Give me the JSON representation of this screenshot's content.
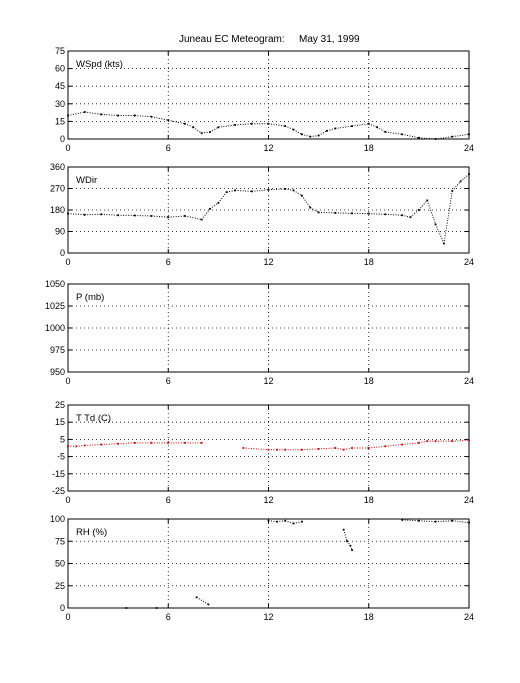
{
  "title": {
    "station": "Juneau EC Meteogram:",
    "date": "May 31, 1999"
  },
  "chart_data": [
    {
      "type": "scatter",
      "label": "WSpd (kts)",
      "xlim": [
        0,
        24
      ],
      "ylim": [
        0,
        75
      ],
      "xticks": [
        "0",
        "6",
        "12",
        "18",
        "24"
      ],
      "yticks": [
        "0",
        "15",
        "30",
        "45",
        "60",
        "75"
      ],
      "grid": true,
      "series": [
        {
          "color": "#000000",
          "x": [
            0,
            1,
            2,
            3,
            4,
            5,
            6,
            7,
            7.5,
            8,
            8.5,
            9,
            10,
            11,
            12,
            13,
            13.5,
            14,
            14.5,
            15,
            15.5,
            16,
            17,
            18,
            18.5,
            19,
            20,
            21,
            22,
            23,
            24
          ],
          "y": [
            20,
            23,
            21,
            20,
            20,
            19,
            16,
            13,
            10,
            5,
            6,
            10,
            12,
            13,
            13,
            11,
            8,
            4,
            2,
            3,
            7,
            9,
            11,
            13,
            10,
            6,
            4,
            1,
            0,
            2,
            4
          ]
        }
      ]
    },
    {
      "type": "scatter",
      "label": "WDir",
      "xlim": [
        0,
        24
      ],
      "ylim": [
        0,
        360
      ],
      "xticks": [
        "0",
        "6",
        "12",
        "18",
        "24"
      ],
      "yticks": [
        "0",
        "90",
        "180",
        "270",
        "360"
      ],
      "grid": true,
      "series": [
        {
          "color": "#000000",
          "x": [
            0,
            1,
            2,
            3,
            4,
            5,
            6,
            7,
            8,
            8.5,
            9,
            9.5,
            10,
            11,
            12,
            13,
            13.5,
            14,
            14.5,
            15,
            16,
            17,
            18,
            19,
            20,
            20.5,
            21,
            21.5,
            22,
            22.5,
            23,
            23.5,
            24
          ],
          "y": [
            165,
            160,
            162,
            158,
            157,
            155,
            150,
            155,
            140,
            185,
            210,
            255,
            262,
            258,
            265,
            268,
            262,
            240,
            190,
            170,
            168,
            166,
            165,
            162,
            158,
            150,
            180,
            220,
            120,
            40,
            260,
            300,
            330
          ]
        }
      ]
    },
    {
      "type": "scatter",
      "label": "P (mb)",
      "xlim": [
        0,
        24
      ],
      "ylim": [
        950,
        1050
      ],
      "xticks": [
        "0",
        "6",
        "12",
        "18",
        "24"
      ],
      "yticks": [
        "950",
        "975",
        "1000",
        "1025",
        "1050"
      ],
      "grid": true,
      "series": []
    },
    {
      "type": "scatter",
      "label": "T Td (C)",
      "xlim": [
        0,
        24
      ],
      "ylim": [
        -25,
        25
      ],
      "xticks": [
        "0",
        "6",
        "12",
        "18",
        "24"
      ],
      "yticks": [
        "-25",
        "-15",
        "-5",
        "5",
        "15",
        "25"
      ],
      "grid": true,
      "series": [
        {
          "color": "#cc0000",
          "x": [
            0,
            0.5,
            1,
            2,
            3,
            4,
            5,
            6,
            7,
            8,
            10.5,
            12,
            12.5,
            13,
            14,
            15,
            16,
            16.5,
            17,
            18,
            19,
            20,
            21,
            21.5,
            22,
            23,
            24
          ],
          "y": [
            1,
            1,
            1.5,
            2,
            2.5,
            3,
            3,
            3,
            3,
            3,
            0,
            -1,
            -1,
            -1,
            -1,
            -0.5,
            0,
            -1,
            0,
            0,
            1,
            2,
            3,
            4,
            4,
            4,
            4.5
          ]
        }
      ]
    },
    {
      "type": "scatter",
      "label": "RH (%)",
      "xlim": [
        0,
        24
      ],
      "ylim": [
        0,
        100
      ],
      "xticks": [
        "0",
        "6",
        "12",
        "18",
        "24"
      ],
      "yticks": [
        "0",
        "25",
        "50",
        "75",
        "100"
      ],
      "grid": true,
      "series": [
        {
          "color": "#000000",
          "x": [
            3.5,
            5.3,
            7.7,
            8.4,
            12,
            12.5,
            13,
            13.5,
            14,
            16.5,
            16.7,
            16.9,
            17,
            20,
            21,
            22,
            23,
            24
          ],
          "y": [
            0,
            0,
            12,
            4,
            98,
            97,
            98,
            95,
            97,
            88,
            75,
            70,
            65,
            99,
            98,
            97,
            98,
            96
          ]
        }
      ]
    }
  ]
}
